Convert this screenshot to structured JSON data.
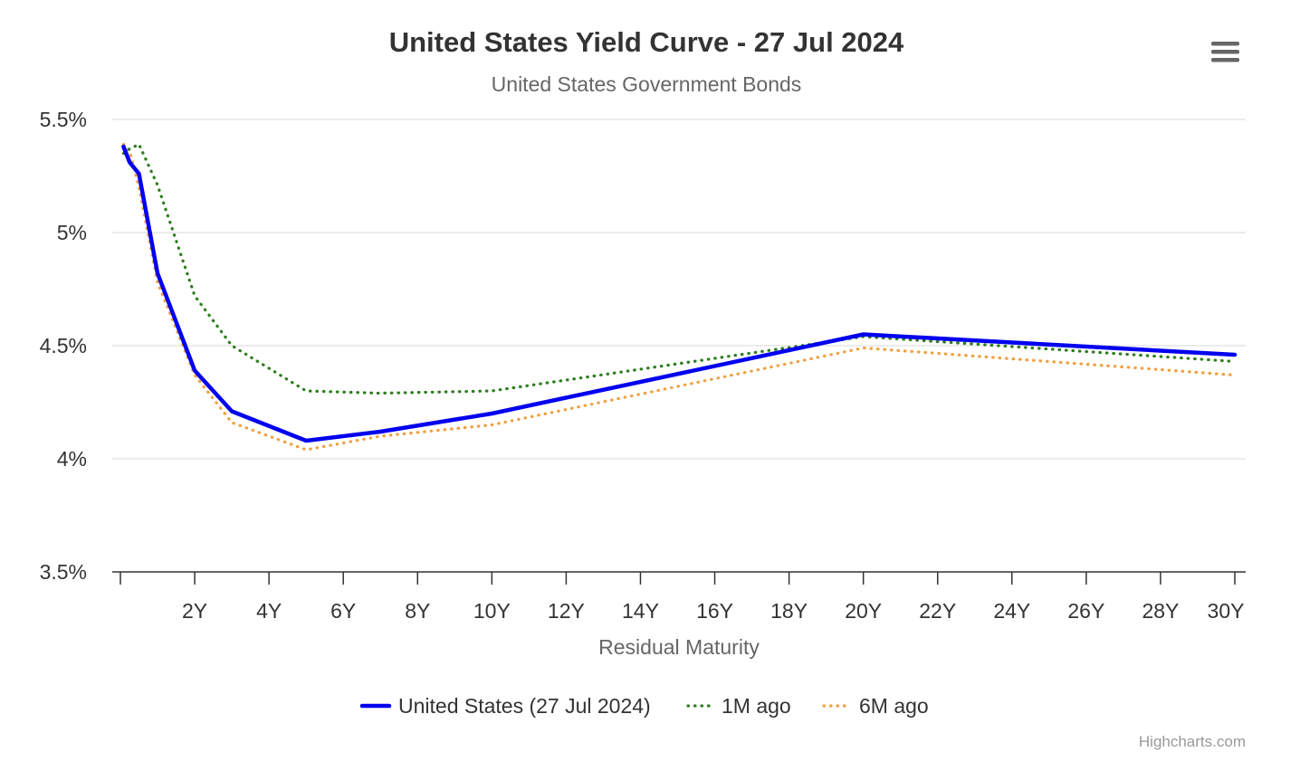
{
  "chart_data": {
    "type": "line",
    "title": "United States Yield Curve - 27 Jul 2024",
    "subtitle": "United States Government Bonds",
    "xlabel": "Residual Maturity",
    "ylabel": "",
    "xlim": [
      0,
      30
    ],
    "ylim": [
      3.5,
      5.5
    ],
    "x_ticks": [
      {
        "value": 2,
        "label": "2Y"
      },
      {
        "value": 4,
        "label": "4Y"
      },
      {
        "value": 6,
        "label": "6Y"
      },
      {
        "value": 8,
        "label": "8Y"
      },
      {
        "value": 10,
        "label": "10Y"
      },
      {
        "value": 12,
        "label": "12Y"
      },
      {
        "value": 14,
        "label": "14Y"
      },
      {
        "value": 16,
        "label": "16Y"
      },
      {
        "value": 18,
        "label": "18Y"
      },
      {
        "value": 20,
        "label": "20Y"
      },
      {
        "value": 22,
        "label": "22Y"
      },
      {
        "value": 24,
        "label": "24Y"
      },
      {
        "value": 26,
        "label": "26Y"
      },
      {
        "value": 28,
        "label": "28Y"
      },
      {
        "value": 30,
        "label": "30Y"
      }
    ],
    "y_ticks": [
      {
        "value": 5.5,
        "label": "5.5%"
      },
      {
        "value": 5.0,
        "label": "5%"
      },
      {
        "value": 4.5,
        "label": "4.5%"
      },
      {
        "value": 4.0,
        "label": "4%"
      },
      {
        "value": 3.5,
        "label": "3.5%"
      }
    ],
    "grid": true,
    "legend_position": "bottom-center",
    "series": [
      {
        "name": "United States (27 Jul 2024)",
        "color": "#0000ee",
        "style": "solid",
        "points": [
          [
            0.083,
            5.38
          ],
          [
            0.25,
            5.31
          ],
          [
            0.5,
            5.26
          ],
          [
            1,
            4.82
          ],
          [
            2,
            4.39
          ],
          [
            3,
            4.21
          ],
          [
            5,
            4.08
          ],
          [
            7,
            4.12
          ],
          [
            10,
            4.2
          ],
          [
            20,
            4.55
          ],
          [
            30,
            4.46
          ]
        ]
      },
      {
        "name": "1M ago",
        "color": "#2e7d1f",
        "style": "dotted",
        "points": [
          [
            0.083,
            5.35
          ],
          [
            0.25,
            5.37
          ],
          [
            0.5,
            5.39
          ],
          [
            1,
            5.21
          ],
          [
            2,
            4.72
          ],
          [
            3,
            4.5
          ],
          [
            5,
            4.3
          ],
          [
            7,
            4.29
          ],
          [
            10,
            4.3
          ],
          [
            20,
            4.54
          ],
          [
            30,
            4.43
          ]
        ]
      },
      {
        "name": "6M ago",
        "color": "#f0a040",
        "style": "dotted",
        "points": [
          [
            0.083,
            5.39
          ],
          [
            0.25,
            5.36
          ],
          [
            0.5,
            5.2
          ],
          [
            1,
            4.78
          ],
          [
            2,
            4.37
          ],
          [
            3,
            4.16
          ],
          [
            5,
            4.04
          ],
          [
            7,
            4.1
          ],
          [
            10,
            4.15
          ],
          [
            20,
            4.49
          ],
          [
            30,
            4.37
          ]
        ]
      }
    ]
  },
  "credits": "Highcharts.com",
  "menu_icon": "hamburger-menu-icon"
}
